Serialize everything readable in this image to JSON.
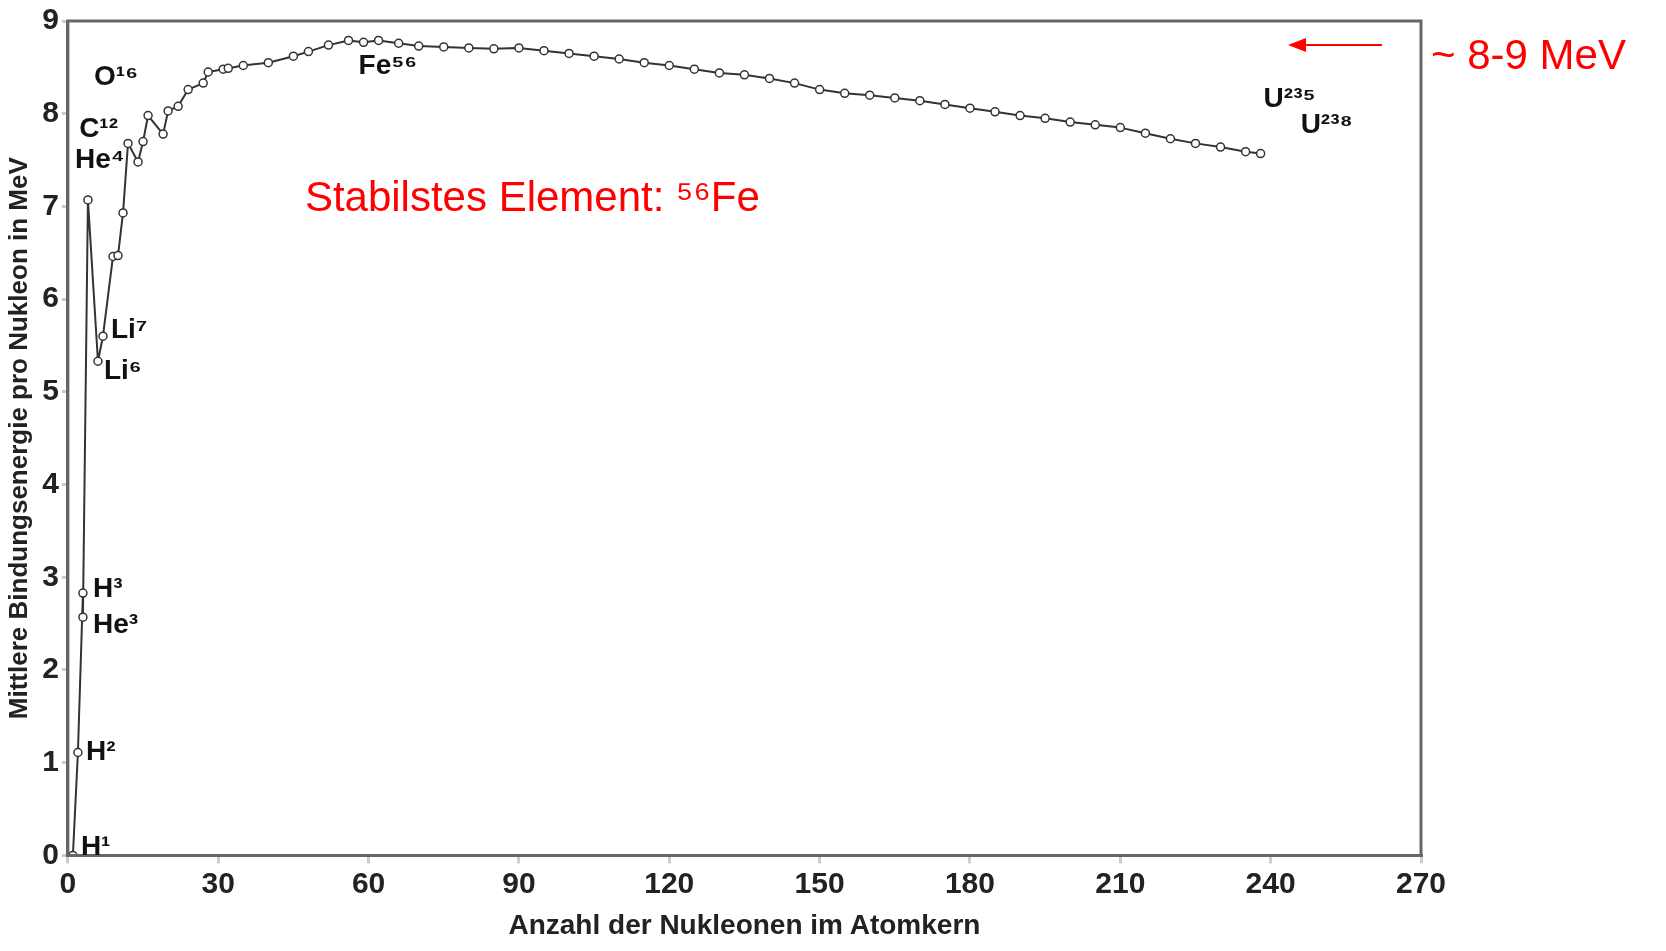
{
  "chart_data": {
    "type": "line",
    "xlabel": "Anzahl der Nukleonen im Atomkern",
    "ylabel": "Mittlere Bindungsenergie pro Nukleon in MeV",
    "x": [
      1,
      2,
      3,
      3,
      4,
      6,
      7,
      9,
      10,
      11,
      12,
      14,
      15,
      16,
      19,
      20,
      22,
      24,
      27,
      28,
      31,
      32,
      35,
      40,
      45,
      48,
      52,
      56,
      59,
      62,
      66,
      70,
      75,
      80,
      85,
      90,
      95,
      100,
      105,
      110,
      115,
      120,
      125,
      130,
      135,
      140,
      145,
      150,
      155,
      160,
      165,
      170,
      175,
      180,
      185,
      190,
      195,
      200,
      205,
      210,
      215,
      220,
      225,
      230,
      235,
      238
    ],
    "series": [
      {
        "color": "#333333",
        "values": [
          0,
          1.11,
          2.83,
          2.57,
          7.07,
          5.33,
          5.6,
          6.46,
          6.47,
          6.93,
          7.68,
          7.48,
          7.7,
          7.98,
          7.78,
          8.03,
          8.08,
          8.26,
          8.33,
          8.45,
          8.48,
          8.49,
          8.52,
          8.55,
          8.62,
          8.67,
          8.74,
          8.79,
          8.77,
          8.79,
          8.76,
          8.73,
          8.72,
          8.71,
          8.7,
          8.71,
          8.68,
          8.65,
          8.62,
          8.59,
          8.55,
          8.52,
          8.48,
          8.44,
          8.42,
          8.38,
          8.33,
          8.26,
          8.22,
          8.2,
          8.17,
          8.14,
          8.1,
          8.06,
          8.02,
          7.98,
          7.95,
          7.91,
          7.88,
          7.85,
          7.79,
          7.73,
          7.68,
          7.64,
          7.59,
          7.57
        ]
      }
    ],
    "xlim": [
      0,
      270
    ],
    "xticks": [
      0,
      30,
      60,
      90,
      120,
      150,
      180,
      210,
      240,
      270
    ],
    "ylim": [
      0,
      9
    ],
    "yticks": [
      0,
      1,
      2,
      3,
      4,
      5,
      6,
      7,
      8,
      9
    ],
    "marker": "circle",
    "line_style": "solid",
    "legend": false,
    "grid": false,
    "annotations": [
      {
        "text": "H¹",
        "x": 1,
        "y": 0
      },
      {
        "text": "H²",
        "x": 2,
        "y": 1.11
      },
      {
        "text": "H³",
        "x": 3,
        "y": 2.83
      },
      {
        "text": "He³",
        "x": 3,
        "y": 2.57
      },
      {
        "text": "He⁴",
        "x": 4,
        "y": 7.07
      },
      {
        "text": "Li⁷",
        "x": 7,
        "y": 5.6
      },
      {
        "text": "Li⁶",
        "x": 6,
        "y": 5.33
      },
      {
        "text": "C¹²",
        "x": 12,
        "y": 7.68
      },
      {
        "text": "O¹⁶",
        "x": 16,
        "y": 7.98
      },
      {
        "text": "Fe⁵⁶",
        "x": 56,
        "y": 8.79
      },
      {
        "text": "U²³⁵",
        "x": 235,
        "y": 7.59
      },
      {
        "text": "U²³⁸",
        "x": 238,
        "y": 7.57
      },
      "Stabilstes Element: ⁵⁶Fe",
      "~ 8-9 MeV"
    ]
  }
}
